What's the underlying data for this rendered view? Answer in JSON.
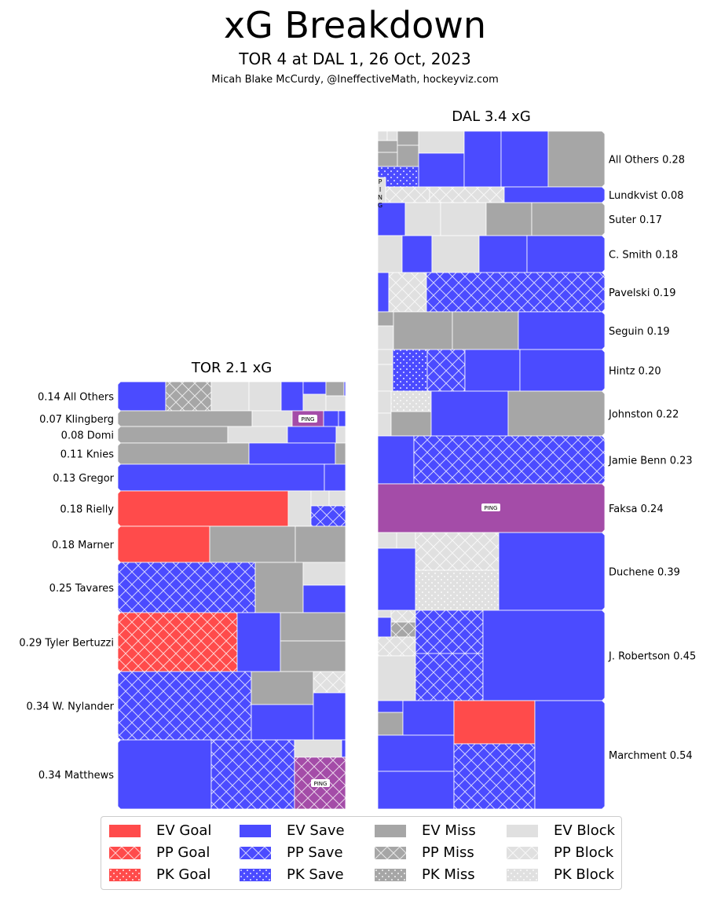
{
  "title": "xG Breakdown",
  "subtitle": "TOR 4 at DAL 1, 26 Oct, 2023",
  "credit": "Micah Blake McCurdy, @IneffectiveMath, hockeyviz.com",
  "colors": {
    "goal": "#ff4b4b",
    "save": "#4b4bff",
    "miss": "#a6a6a6",
    "block": "#e0e0e0",
    "ping": "#a44ca8"
  },
  "ping_label": "PING",
  "chart_data": {
    "type": "treemap",
    "panels": [
      {
        "team": "TOR",
        "title": "TOR 2.1 xG",
        "total_xg": 2.1,
        "players": [
          {
            "label": "0.14 All Others",
            "xg": 0.14
          },
          {
            "label": "0.07 Klingberg",
            "xg": 0.07
          },
          {
            "label": "0.08 Domi",
            "xg": 0.08
          },
          {
            "label": "0.11 Knies",
            "xg": 0.11
          },
          {
            "label": "0.13 Gregor",
            "xg": 0.13
          },
          {
            "label": "0.18 Rielly",
            "xg": 0.18
          },
          {
            "label": "0.18 Marner",
            "xg": 0.18
          },
          {
            "label": "0.25 Tavares",
            "xg": 0.25
          },
          {
            "label": "0.29 Tyler Bertuzzi",
            "xg": 0.29
          },
          {
            "label": "0.34 W. Nylander",
            "xg": 0.34
          },
          {
            "label": "0.34 Matthews",
            "xg": 0.34
          }
        ]
      },
      {
        "team": "DAL",
        "title": "DAL 3.4 xG",
        "total_xg": 3.4,
        "players": [
          {
            "label": "All Others 0.28",
            "xg": 0.28
          },
          {
            "label": "Lundkvist 0.08",
            "xg": 0.08
          },
          {
            "label": "Suter 0.17",
            "xg": 0.17
          },
          {
            "label": "C. Smith 0.18",
            "xg": 0.18
          },
          {
            "label": "Pavelski 0.19",
            "xg": 0.19
          },
          {
            "label": "Seguin 0.19",
            "xg": 0.19
          },
          {
            "label": "Hintz 0.20",
            "xg": 0.2
          },
          {
            "label": "Johnston 0.22",
            "xg": 0.22
          },
          {
            "label": "Jamie Benn 0.23",
            "xg": 0.23
          },
          {
            "label": "Faksa 0.24",
            "xg": 0.24
          },
          {
            "label": "Duchene 0.39",
            "xg": 0.39
          },
          {
            "label": "J. Robertson 0.45",
            "xg": 0.45
          },
          {
            "label": "Marchment 0.54",
            "xg": 0.54
          }
        ]
      }
    ],
    "legend": {
      "placement": "bottom",
      "columns": [
        [
          {
            "label": "EV Goal",
            "color": "goal",
            "pattern": "solid"
          },
          {
            "label": "PP Goal",
            "color": "goal",
            "pattern": "cross"
          },
          {
            "label": "PK Goal",
            "color": "goal",
            "pattern": "dots"
          }
        ],
        [
          {
            "label": "EV Save",
            "color": "save",
            "pattern": "solid"
          },
          {
            "label": "PP Save",
            "color": "save",
            "pattern": "cross"
          },
          {
            "label": "PK Save",
            "color": "save",
            "pattern": "dots"
          }
        ],
        [
          {
            "label": "EV Miss",
            "color": "miss",
            "pattern": "solid"
          },
          {
            "label": "PP Miss",
            "color": "miss",
            "pattern": "cross"
          },
          {
            "label": "PK Miss",
            "color": "miss",
            "pattern": "dots"
          }
        ],
        [
          {
            "label": "EV Block",
            "color": "block",
            "pattern": "solid"
          },
          {
            "label": "PP Block",
            "color": "block",
            "pattern": "cross"
          },
          {
            "label": "PK Block",
            "color": "block",
            "pattern": "dots"
          }
        ]
      ]
    }
  }
}
